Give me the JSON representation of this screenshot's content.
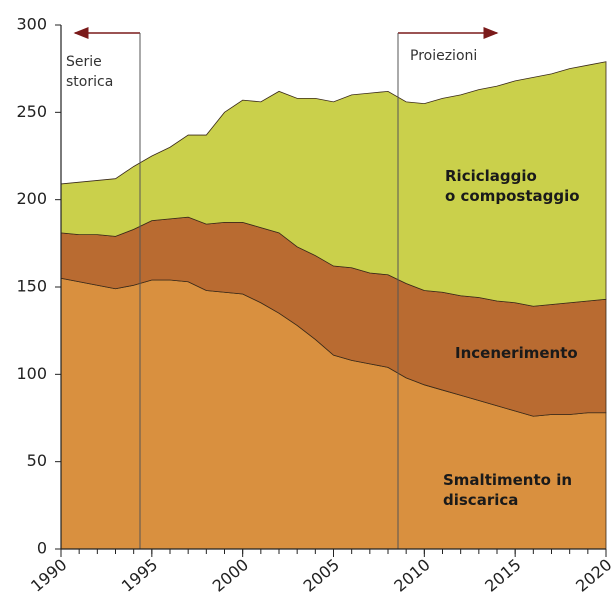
{
  "chart_data": {
    "type": "stacked_area",
    "x": [
      1990,
      1991,
      1992,
      1993,
      1994,
      1995,
      1996,
      1997,
      1998,
      1999,
      2000,
      2001,
      2002,
      2003,
      2004,
      2005,
      2006,
      2007,
      2008,
      2009,
      2010,
      2011,
      2012,
      2013,
      2014,
      2015,
      2016,
      2017,
      2018,
      2019,
      2020
    ],
    "series": [
      {
        "name": "Smaltimento in\ndiscarica",
        "color": "#d9903f",
        "values": [
          155,
          153,
          151,
          149,
          151,
          154,
          154,
          153,
          148,
          147,
          146,
          141,
          135,
          128,
          120,
          111,
          108,
          106,
          104,
          98,
          94,
          91,
          88,
          85,
          82,
          79,
          76,
          77,
          77,
          78,
          78
        ]
      },
      {
        "name": "Incenerimento",
        "color": "#b96b31",
        "values": [
          26,
          27,
          29,
          30,
          32,
          34,
          35,
          37,
          38,
          40,
          41,
          43,
          46,
          45,
          48,
          51,
          53,
          52,
          53,
          54,
          54,
          56,
          57,
          59,
          60,
          62,
          63,
          63,
          64,
          64,
          65
        ]
      },
      {
        "name": "Riciclaggio\no compostaggio",
        "color": "#cad04b",
        "values": [
          28,
          30,
          31,
          33,
          36,
          37,
          41,
          47,
          51,
          63,
          70,
          72,
          81,
          85,
          90,
          94,
          99,
          103,
          105,
          104,
          107,
          111,
          115,
          119,
          123,
          127,
          131,
          132,
          134,
          135,
          136
        ]
      }
    ],
    "annotations": [
      "Serie\nstorica",
      "Proiezioni"
    ],
    "xlim": [
      1990,
      2020
    ],
    "xticks": [
      1990,
      1995,
      2000,
      2005,
      2010,
      2015,
      2020
    ],
    "ylim": [
      0,
      300
    ],
    "yticks": [
      0,
      50,
      100,
      150,
      200,
      250,
      300
    ]
  }
}
